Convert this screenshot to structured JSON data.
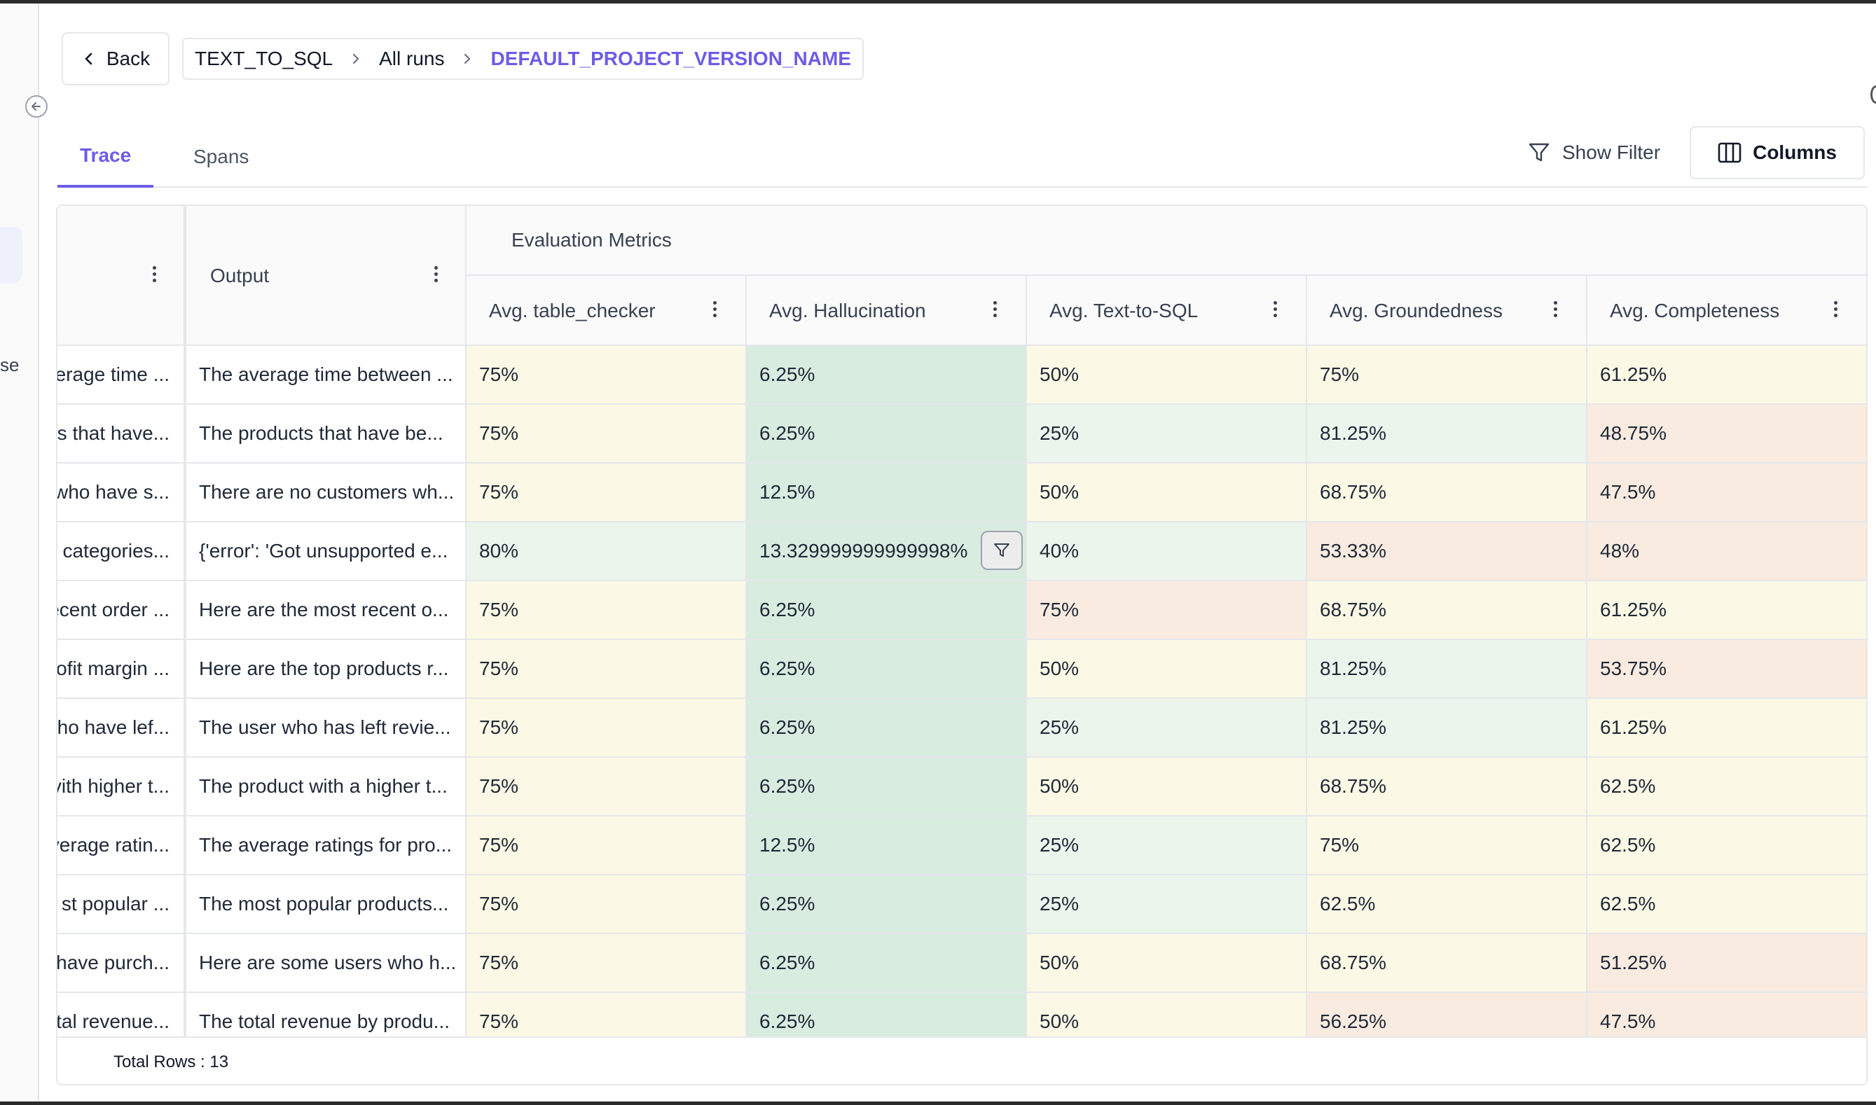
{
  "nav": {
    "back_label": "Back",
    "breadcrumb": [
      "TEXT_TO_SQL",
      "All runs",
      "DEFAULT_PROJECT_VERSION_NAME"
    ],
    "sidebar_partial_text": "se"
  },
  "tabs": [
    {
      "label": "Trace",
      "active": true
    },
    {
      "label": "Spans",
      "active": false
    }
  ],
  "toolbar": {
    "show_filter_label": "Show Filter",
    "columns_label": "Columns"
  },
  "table": {
    "output_header": "Output",
    "group_header": "Evaluation Metrics",
    "metric_headers": [
      "Avg. table_checker",
      "Avg. Hallucination",
      "Avg. Text-to-SQL",
      "Avg. Groundedness",
      "Avg. Completeness"
    ],
    "rows": [
      {
        "input": "verage time ...",
        "output": "The average time between ...",
        "metrics": [
          "75%",
          "6.25%",
          "50%",
          "75%",
          "61.25%"
        ]
      },
      {
        "input": "ts that have...",
        "output": "The products that have be...",
        "metrics": [
          "75%",
          "6.25%",
          "25%",
          "81.25%",
          "48.75%"
        ]
      },
      {
        "input": "who have s...",
        "output": "There are no customers wh...",
        "metrics": [
          "75%",
          "12.5%",
          "50%",
          "68.75%",
          "47.5%"
        ]
      },
      {
        "input": "t categories...",
        "output": "{'error': 'Got unsupported e...",
        "metrics": [
          "80%",
          "13.329999999999998%",
          "40%",
          "53.33%",
          "48%"
        ]
      },
      {
        "input": "ecent order ...",
        "output": "Here are the most recent o...",
        "metrics": [
          "75%",
          "6.25%",
          "75%",
          "68.75%",
          "61.25%"
        ]
      },
      {
        "input": "ofit margin ...",
        "output": "Here are the top products r...",
        "metrics": [
          "75%",
          "6.25%",
          "50%",
          "81.25%",
          "53.75%"
        ]
      },
      {
        "input": "vho have lef...",
        "output": "The user who has left revie...",
        "metrics": [
          "75%",
          "6.25%",
          "25%",
          "81.25%",
          "61.25%"
        ]
      },
      {
        "input": "vith higher t...",
        "output": "The product with a higher t...",
        "metrics": [
          "75%",
          "6.25%",
          "50%",
          "68.75%",
          "62.5%"
        ]
      },
      {
        "input": "verage ratin...",
        "output": "The average ratings for pro...",
        "metrics": [
          "75%",
          "12.5%",
          "25%",
          "75%",
          "62.5%"
        ]
      },
      {
        "input": "st popular ...",
        "output": "The most popular products...",
        "metrics": [
          "75%",
          "6.25%",
          "25%",
          "62.5%",
          "62.5%"
        ]
      },
      {
        "input": "have purch...",
        "output": "Here are some users who h...",
        "metrics": [
          "75%",
          "6.25%",
          "50%",
          "68.75%",
          "51.25%"
        ]
      },
      {
        "input": "tal revenue...",
        "output": "The total revenue by produ...",
        "metrics": [
          "75%",
          "6.25%",
          "50%",
          "56.25%",
          "47.5%"
        ]
      }
    ],
    "total_rows_label": "Total Rows : 13"
  },
  "colors": {
    "accent": "#6c5ce7",
    "cell_yellow": "#fbf8e5",
    "cell_light_green": "#ebf5ec",
    "cell_green": "#d8ece0",
    "cell_peach": "#f9ebe0"
  },
  "cell_tones": [
    [
      "y",
      "g",
      "y",
      "y",
      "y"
    ],
    [
      "y",
      "g",
      "lg",
      "lg",
      "p"
    ],
    [
      "y",
      "g",
      "y",
      "y",
      "p"
    ],
    [
      "lg",
      "g",
      "lg",
      "p",
      "p"
    ],
    [
      "y",
      "g",
      "p",
      "y",
      "y"
    ],
    [
      "y",
      "g",
      "y",
      "lg",
      "p"
    ],
    [
      "y",
      "g",
      "lg",
      "lg",
      "y"
    ],
    [
      "y",
      "g",
      "y",
      "y",
      "y"
    ],
    [
      "y",
      "g",
      "lg",
      "y",
      "y"
    ],
    [
      "y",
      "g",
      "lg",
      "y",
      "y"
    ],
    [
      "y",
      "g",
      "y",
      "y",
      "p"
    ],
    [
      "y",
      "g",
      "y",
      "p",
      "p"
    ]
  ],
  "active_filter_cell": {
    "row": 3,
    "col": 1
  }
}
